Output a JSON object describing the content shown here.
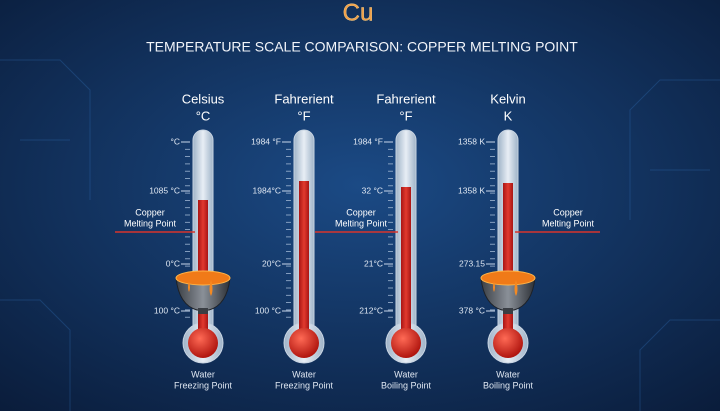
{
  "logo": "Cu",
  "title": "TEMPERATURE SCALE COMPARISON: COPPER MELTING POINT",
  "thermometers": [
    {
      "name": "Celsius",
      "unit": "°C",
      "ticks": [
        "°C",
        "1085 °C",
        "0°C",
        "100 °C"
      ],
      "footer": [
        "Water",
        "Freezing Point"
      ]
    },
    {
      "name": "Fahrerient",
      "unit": "°F",
      "ticks": [
        "1984 °F",
        "1984°C",
        "20°C",
        "100 °C"
      ],
      "footer": [
        "Water",
        "Freezing Point"
      ]
    },
    {
      "name": "Fahrerient",
      "unit": "°F",
      "ticks": [
        "1984 °F",
        "32 °C",
        "21°C",
        "212°C"
      ],
      "footer": [
        "Water",
        "Boiling Point"
      ]
    },
    {
      "name": "Kelvin",
      "unit": "K",
      "ticks": [
        "1358 K",
        "1358 K",
        "273.15",
        "378 °C"
      ],
      "footer": [
        "Water",
        "Boiling Point"
      ]
    }
  ],
  "annotations": [
    {
      "lines": [
        "Copper",
        "Melting Point"
      ]
    },
    {
      "lines": [
        "Copper",
        "Melting Point"
      ]
    },
    {
      "lines": [
        "Copper",
        "Melting Point"
      ]
    }
  ]
}
